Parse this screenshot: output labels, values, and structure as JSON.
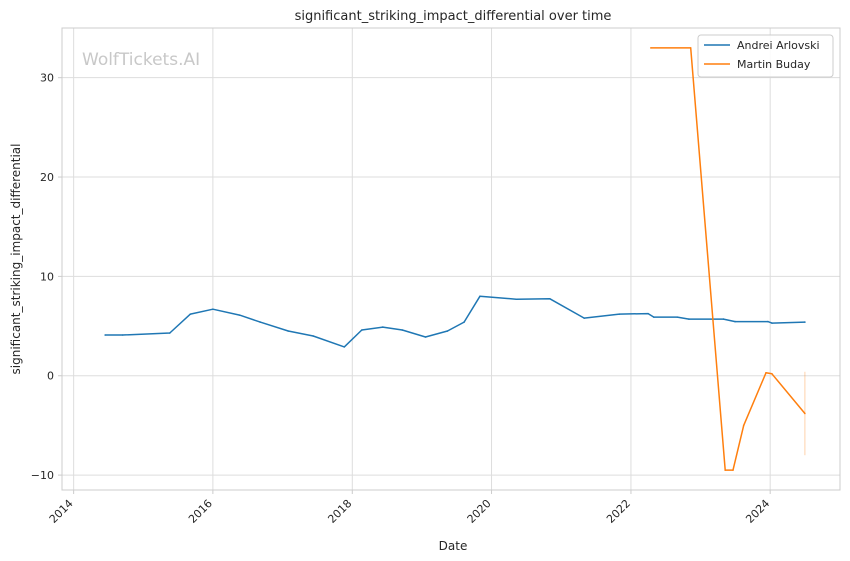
{
  "chart_data": {
    "type": "line",
    "title": "significant_striking_impact_differential over time",
    "xlabel": "Date",
    "ylabel": "significant_striking_impact_differential",
    "watermark": "WolfTickets.AI",
    "xlim": [
      "2013-11-01",
      "2025-01-01"
    ],
    "ylim": [
      -11.5,
      35
    ],
    "x_ticks": [
      "2014",
      "2016",
      "2018",
      "2020",
      "2022",
      "2024"
    ],
    "y_ticks": [
      "-10",
      "0",
      "10",
      "20",
      "30"
    ],
    "grid": true,
    "legend_position": "top-right",
    "series": [
      {
        "name": "Andrei Arlovski",
        "color": "#1f77b4",
        "points": [
          [
            "2014-06-15",
            4.1
          ],
          [
            "2014-09-15",
            4.1
          ],
          [
            "2015-05-20",
            4.3
          ],
          [
            "2015-09-05",
            6.2
          ],
          [
            "2016-01-01",
            6.7
          ],
          [
            "2016-05-20",
            6.1
          ],
          [
            "2016-09-05",
            5.4
          ],
          [
            "2017-01-30",
            4.5
          ],
          [
            "2017-06-10",
            4.0
          ],
          [
            "2017-11-20",
            2.9
          ],
          [
            "2018-02-20",
            4.6
          ],
          [
            "2018-06-10",
            4.9
          ],
          [
            "2018-09-20",
            4.6
          ],
          [
            "2019-01-20",
            3.9
          ],
          [
            "2019-05-15",
            4.5
          ],
          [
            "2019-08-10",
            5.4
          ],
          [
            "2019-11-01",
            8.0
          ],
          [
            "2020-05-10",
            7.7
          ],
          [
            "2020-11-01",
            7.75
          ],
          [
            "2021-05-01",
            5.8
          ],
          [
            "2021-11-01",
            6.2
          ],
          [
            "2022-04-01",
            6.25
          ],
          [
            "2022-05-01",
            5.9
          ],
          [
            "2022-09-01",
            5.9
          ],
          [
            "2022-11-01",
            5.7
          ],
          [
            "2023-05-01",
            5.7
          ],
          [
            "2023-07-01",
            5.45
          ],
          [
            "2023-12-20",
            5.45
          ],
          [
            "2024-01-10",
            5.3
          ],
          [
            "2024-07-01",
            5.4
          ]
        ]
      },
      {
        "name": "Martin Buday",
        "color": "#ff7f0e",
        "points": [
          [
            "2022-04-15",
            33.0
          ],
          [
            "2022-11-10",
            33.0
          ],
          [
            "2023-05-10",
            -9.5
          ],
          [
            "2023-06-20",
            -9.5
          ],
          [
            "2023-08-15",
            -5.0
          ],
          [
            "2023-12-10",
            0.3
          ],
          [
            "2024-01-10",
            0.2
          ],
          [
            "2024-07-01",
            -3.8
          ]
        ]
      }
    ],
    "error_bar": {
      "series": "Martin Buday",
      "x": "2024-07-01",
      "low": -8.0,
      "high": 0.4
    }
  }
}
